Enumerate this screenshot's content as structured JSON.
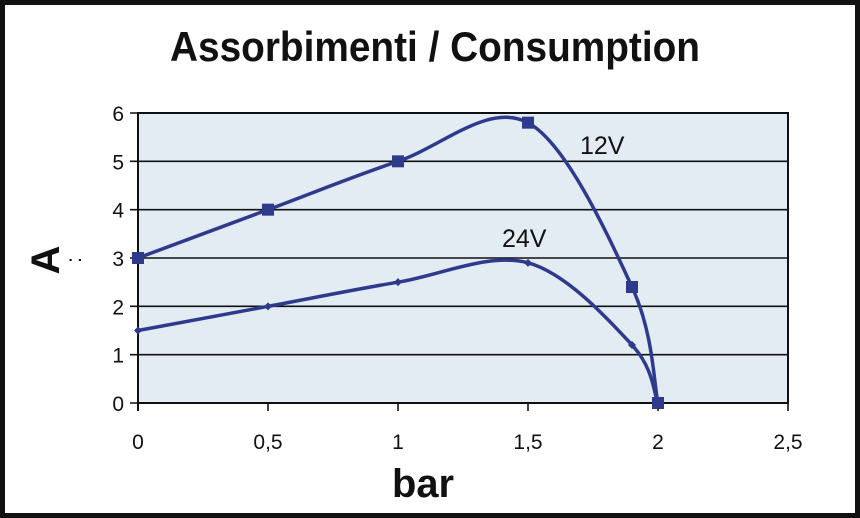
{
  "chart_data": {
    "type": "line",
    "title": "Assorbimenti / Consumption",
    "xlabel": "bar",
    "ylabel": "A",
    "ylabel_suffix": ":",
    "xlim": [
      0,
      2.5
    ],
    "ylim": [
      0,
      6
    ],
    "x_ticks": [
      "0",
      "0,5",
      "1",
      "1,5",
      "2",
      "2,5"
    ],
    "y_ticks": [
      "0",
      "1",
      "2",
      "3",
      "4",
      "5",
      "6"
    ],
    "grid": "horizontal",
    "series": [
      {
        "name": "12V",
        "marker": "square",
        "x": [
          0,
          0.5,
          1,
          1.5,
          1.9,
          2
        ],
        "y": [
          3,
          4,
          5,
          5.8,
          2.4,
          0
        ]
      },
      {
        "name": "24V",
        "marker": "diamond",
        "x": [
          0,
          0.5,
          1,
          1.5,
          1.9,
          2
        ],
        "y": [
          1.5,
          2,
          2.5,
          2.9,
          1.2,
          0
        ]
      }
    ],
    "colors": {
      "line": "#2e3a8c",
      "plot_bg": "#e3ebf3"
    }
  }
}
